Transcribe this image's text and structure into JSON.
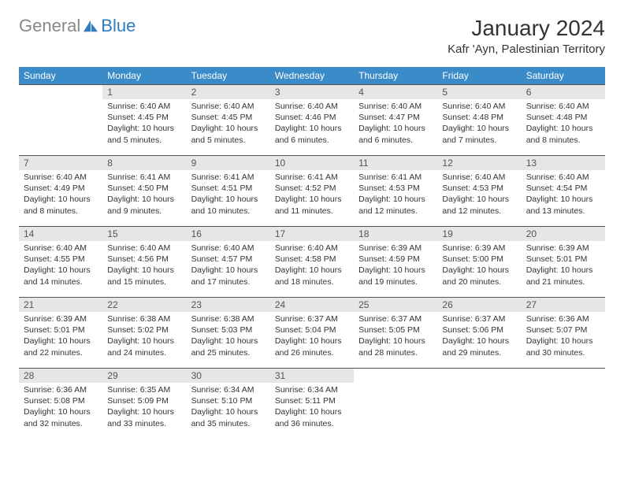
{
  "logo": {
    "general": "General",
    "blue": "Blue"
  },
  "title": "January 2024",
  "location": "Kafr 'Ayn, Palestinian Territory",
  "weekdays": [
    "Sunday",
    "Monday",
    "Tuesday",
    "Wednesday",
    "Thursday",
    "Friday",
    "Saturday"
  ],
  "colors": {
    "header_bg": "#3b8bc8",
    "header_fg": "#ffffff",
    "daynum_bg": "#e6e6e6",
    "border": "#555555",
    "logo_grey": "#888888",
    "logo_blue": "#2d7cc0"
  },
  "start_offset": 1,
  "days": [
    {
      "n": 1,
      "sr": "6:40 AM",
      "ss": "4:45 PM",
      "dl": "10 hours and 5 minutes."
    },
    {
      "n": 2,
      "sr": "6:40 AM",
      "ss": "4:45 PM",
      "dl": "10 hours and 5 minutes."
    },
    {
      "n": 3,
      "sr": "6:40 AM",
      "ss": "4:46 PM",
      "dl": "10 hours and 6 minutes."
    },
    {
      "n": 4,
      "sr": "6:40 AM",
      "ss": "4:47 PM",
      "dl": "10 hours and 6 minutes."
    },
    {
      "n": 5,
      "sr": "6:40 AM",
      "ss": "4:48 PM",
      "dl": "10 hours and 7 minutes."
    },
    {
      "n": 6,
      "sr": "6:40 AM",
      "ss": "4:48 PM",
      "dl": "10 hours and 8 minutes."
    },
    {
      "n": 7,
      "sr": "6:40 AM",
      "ss": "4:49 PM",
      "dl": "10 hours and 8 minutes."
    },
    {
      "n": 8,
      "sr": "6:41 AM",
      "ss": "4:50 PM",
      "dl": "10 hours and 9 minutes."
    },
    {
      "n": 9,
      "sr": "6:41 AM",
      "ss": "4:51 PM",
      "dl": "10 hours and 10 minutes."
    },
    {
      "n": 10,
      "sr": "6:41 AM",
      "ss": "4:52 PM",
      "dl": "10 hours and 11 minutes."
    },
    {
      "n": 11,
      "sr": "6:41 AM",
      "ss": "4:53 PM",
      "dl": "10 hours and 12 minutes."
    },
    {
      "n": 12,
      "sr": "6:40 AM",
      "ss": "4:53 PM",
      "dl": "10 hours and 12 minutes."
    },
    {
      "n": 13,
      "sr": "6:40 AM",
      "ss": "4:54 PM",
      "dl": "10 hours and 13 minutes."
    },
    {
      "n": 14,
      "sr": "6:40 AM",
      "ss": "4:55 PM",
      "dl": "10 hours and 14 minutes."
    },
    {
      "n": 15,
      "sr": "6:40 AM",
      "ss": "4:56 PM",
      "dl": "10 hours and 15 minutes."
    },
    {
      "n": 16,
      "sr": "6:40 AM",
      "ss": "4:57 PM",
      "dl": "10 hours and 17 minutes."
    },
    {
      "n": 17,
      "sr": "6:40 AM",
      "ss": "4:58 PM",
      "dl": "10 hours and 18 minutes."
    },
    {
      "n": 18,
      "sr": "6:39 AM",
      "ss": "4:59 PM",
      "dl": "10 hours and 19 minutes."
    },
    {
      "n": 19,
      "sr": "6:39 AM",
      "ss": "5:00 PM",
      "dl": "10 hours and 20 minutes."
    },
    {
      "n": 20,
      "sr": "6:39 AM",
      "ss": "5:01 PM",
      "dl": "10 hours and 21 minutes."
    },
    {
      "n": 21,
      "sr": "6:39 AM",
      "ss": "5:01 PM",
      "dl": "10 hours and 22 minutes."
    },
    {
      "n": 22,
      "sr": "6:38 AM",
      "ss": "5:02 PM",
      "dl": "10 hours and 24 minutes."
    },
    {
      "n": 23,
      "sr": "6:38 AM",
      "ss": "5:03 PM",
      "dl": "10 hours and 25 minutes."
    },
    {
      "n": 24,
      "sr": "6:37 AM",
      "ss": "5:04 PM",
      "dl": "10 hours and 26 minutes."
    },
    {
      "n": 25,
      "sr": "6:37 AM",
      "ss": "5:05 PM",
      "dl": "10 hours and 28 minutes."
    },
    {
      "n": 26,
      "sr": "6:37 AM",
      "ss": "5:06 PM",
      "dl": "10 hours and 29 minutes."
    },
    {
      "n": 27,
      "sr": "6:36 AM",
      "ss": "5:07 PM",
      "dl": "10 hours and 30 minutes."
    },
    {
      "n": 28,
      "sr": "6:36 AM",
      "ss": "5:08 PM",
      "dl": "10 hours and 32 minutes."
    },
    {
      "n": 29,
      "sr": "6:35 AM",
      "ss": "5:09 PM",
      "dl": "10 hours and 33 minutes."
    },
    {
      "n": 30,
      "sr": "6:34 AM",
      "ss": "5:10 PM",
      "dl": "10 hours and 35 minutes."
    },
    {
      "n": 31,
      "sr": "6:34 AM",
      "ss": "5:11 PM",
      "dl": "10 hours and 36 minutes."
    }
  ],
  "labels": {
    "sunrise": "Sunrise:",
    "sunset": "Sunset:",
    "daylight": "Daylight:"
  }
}
